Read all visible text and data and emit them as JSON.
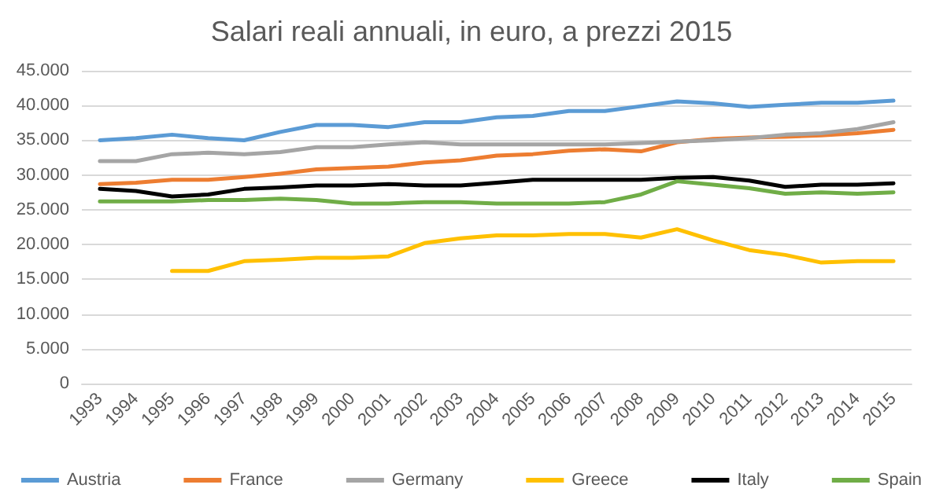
{
  "chart_data": {
    "type": "line",
    "title": "Salari reali annuali, in euro, a prezzi 2015",
    "categories": [
      "1993",
      "1994",
      "1995",
      "1996",
      "1997",
      "1998",
      "1999",
      "2000",
      "2001",
      "2002",
      "2003",
      "2004",
      "2005",
      "2006",
      "2007",
      "2008",
      "2009",
      "2010",
      "2011",
      "2012",
      "2013",
      "2014",
      "2015"
    ],
    "series": [
      {
        "name": "Austria",
        "color": "#5b9bd5",
        "values": [
          35000,
          35300,
          35800,
          35300,
          35000,
          36200,
          37200,
          37200,
          36900,
          37600,
          37600,
          38300,
          38500,
          39200,
          39200,
          39900,
          40600,
          40300,
          39800,
          40100,
          40400,
          40400,
          40700
        ]
      },
      {
        "name": "France",
        "color": "#ed7d31",
        "values": [
          28700,
          28900,
          29300,
          29300,
          29700,
          30200,
          30800,
          31000,
          31200,
          31800,
          32100,
          32800,
          33000,
          33500,
          33700,
          33400,
          34700,
          35200,
          35400,
          35500,
          35700,
          36000,
          36500
        ]
      },
      {
        "name": "Germany",
        "color": "#a5a5a5",
        "values": [
          32000,
          32000,
          33000,
          33200,
          33000,
          33300,
          34000,
          34000,
          34400,
          34700,
          34400,
          34400,
          34400,
          34400,
          34400,
          34600,
          34800,
          35000,
          35300,
          35800,
          36000,
          36600,
          37600
        ]
      },
      {
        "name": "Greece",
        "color": "#ffc000",
        "values": [
          null,
          null,
          16200,
          16200,
          17600,
          17800,
          18100,
          18100,
          18300,
          20200,
          20900,
          21300,
          21300,
          21500,
          21500,
          21000,
          22200,
          20600,
          19200,
          18500,
          17400,
          17600,
          17600
        ]
      },
      {
        "name": "Italy",
        "color": "#000000",
        "values": [
          28000,
          27700,
          26900,
          27200,
          28000,
          28200,
          28500,
          28500,
          28700,
          28500,
          28500,
          28900,
          29300,
          29300,
          29300,
          29300,
          29600,
          29700,
          29200,
          28300,
          28600,
          28600,
          28800
        ]
      },
      {
        "name": "Spain",
        "color": "#70ad47",
        "values": [
          26200,
          26200,
          26200,
          26400,
          26400,
          26600,
          26400,
          25900,
          25900,
          26100,
          26100,
          25900,
          25900,
          25900,
          26100,
          27200,
          29100,
          28600,
          28100,
          27300,
          27500,
          27300,
          27500
        ]
      }
    ],
    "ylim": [
      0,
      45000
    ],
    "yticks": [
      0,
      {
        "value": 5000,
        "label": "5.000"
      },
      {
        "value": 10000,
        "label": "10.000"
      },
      {
        "value": 15000,
        "label": "15.000"
      },
      {
        "value": 20000,
        "label": "20.000"
      },
      {
        "value": 25000,
        "label": "25.000"
      },
      {
        "value": 30000,
        "label": "30.000"
      },
      {
        "value": 35000,
        "label": "35.000"
      },
      {
        "value": 40000,
        "label": "40.000"
      },
      {
        "value": 45000,
        "label": "45.000"
      }
    ],
    "grid": "y",
    "legend": "bottom",
    "marker": "none",
    "line_style": "solid"
  }
}
